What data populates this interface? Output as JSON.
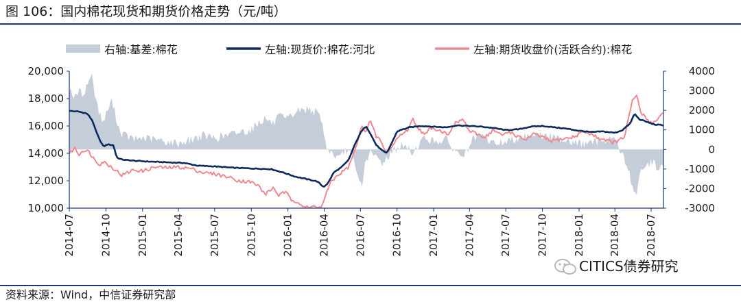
{
  "header": {
    "title": "图 106：国内棉花现货和期货价格走势（元/吨）"
  },
  "footer": {
    "source": "资料来源：Wind，中信证券研究部"
  },
  "watermark": {
    "text": "CITICS债券研究",
    "icon": "wechat-icon"
  },
  "colors": {
    "basis": "#c5cdd8",
    "spot": "#0d2a5c",
    "futures": "#ee8a8f",
    "axis": "#163a70"
  },
  "chart_data": {
    "type": "line",
    "legend": [
      "右轴:基差:棉花",
      "左轴:现货价:棉花:河北",
      "左轴:期货收盘价(活跃合约):棉花"
    ],
    "legend_position": "top",
    "grid": false,
    "x_ticks": [
      "2014-07",
      "2014-10",
      "2015-01",
      "2015-04",
      "2015-07",
      "2015-10",
      "2016-01",
      "2016-04",
      "2016-07",
      "2016-10",
      "2017-01",
      "2017-04",
      "2017-07",
      "2017-10",
      "2018-01",
      "2018-04",
      "2018-07"
    ],
    "x_range": [
      "2014-07",
      "2018-08"
    ],
    "y_left": {
      "ticks": [
        "10,000",
        "12,000",
        "14,000",
        "16,000",
        "18,000",
        "20,000"
      ],
      "range": [
        10000,
        20000
      ]
    },
    "y_right": {
      "ticks": [
        "-3000",
        "-2000",
        "-1000",
        "0",
        "1000",
        "2000",
        "3000",
        "4000"
      ],
      "range": [
        -3000,
        4000
      ]
    },
    "series": [
      {
        "name": "左轴:现货价:棉花:河北",
        "axis": "left",
        "kind": "line",
        "points": [
          [
            "2014-07-01",
            17100
          ],
          [
            "2014-07-25",
            17050
          ],
          [
            "2014-08-15",
            16900
          ],
          [
            "2014-08-28",
            16400
          ],
          [
            "2014-09-05",
            15700
          ],
          [
            "2014-09-15",
            15000
          ],
          [
            "2014-09-25",
            14500
          ],
          [
            "2014-10-05",
            14650
          ],
          [
            "2014-10-20",
            14600
          ],
          [
            "2014-10-28",
            13700
          ],
          [
            "2014-11-10",
            13550
          ],
          [
            "2014-12-15",
            13450
          ],
          [
            "2015-01-20",
            13400
          ],
          [
            "2015-03-01",
            13350
          ],
          [
            "2015-04-15",
            13300
          ],
          [
            "2015-05-20",
            13100
          ],
          [
            "2015-07-01",
            13050
          ],
          [
            "2015-08-15",
            12950
          ],
          [
            "2015-10-01",
            12900
          ],
          [
            "2015-11-20",
            12850
          ],
          [
            "2015-12-20",
            12600
          ],
          [
            "2016-01-20",
            12300
          ],
          [
            "2016-02-20",
            12100
          ],
          [
            "2016-03-15",
            11950
          ],
          [
            "2016-03-30",
            11550
          ],
          [
            "2016-04-10",
            11800
          ],
          [
            "2016-04-25",
            12600
          ],
          [
            "2016-05-15",
            13000
          ],
          [
            "2016-06-01",
            13500
          ],
          [
            "2016-06-15",
            14500
          ],
          [
            "2016-07-01",
            15500
          ],
          [
            "2016-07-15",
            16000
          ],
          [
            "2016-07-25",
            15500
          ],
          [
            "2016-08-10",
            14600
          ],
          [
            "2016-08-25",
            14200
          ],
          [
            "2016-09-05",
            14000
          ],
          [
            "2016-09-20",
            14900
          ],
          [
            "2016-10-01",
            15600
          ],
          [
            "2016-10-10",
            15700
          ],
          [
            "2016-11-01",
            15900
          ],
          [
            "2016-12-01",
            16000
          ],
          [
            "2017-01-01",
            15950
          ],
          [
            "2017-02-01",
            15900
          ],
          [
            "2017-03-01",
            16050
          ],
          [
            "2017-04-01",
            16000
          ],
          [
            "2017-05-01",
            15950
          ],
          [
            "2017-06-01",
            15850
          ],
          [
            "2017-07-01",
            15700
          ],
          [
            "2017-08-01",
            15750
          ],
          [
            "2017-09-01",
            15950
          ],
          [
            "2017-10-01",
            16000
          ],
          [
            "2017-11-01",
            15900
          ],
          [
            "2017-12-01",
            15800
          ],
          [
            "2018-01-01",
            15650
          ],
          [
            "2018-02-01",
            15550
          ],
          [
            "2018-03-01",
            15600
          ],
          [
            "2018-04-01",
            15500
          ],
          [
            "2018-04-20",
            15700
          ],
          [
            "2018-05-10",
            16200
          ],
          [
            "2018-05-20",
            16900
          ],
          [
            "2018-06-01",
            16500
          ],
          [
            "2018-06-20",
            16300
          ],
          [
            "2018-07-10",
            16100
          ],
          [
            "2018-08-01",
            16050
          ]
        ]
      },
      {
        "name": "左轴:期货收盘价(活跃合约):棉花",
        "axis": "left",
        "kind": "line",
        "points": [
          [
            "2014-07-01",
            14000
          ],
          [
            "2014-07-15",
            14400
          ],
          [
            "2014-07-25",
            13900
          ],
          [
            "2014-08-05",
            14250
          ],
          [
            "2014-08-20",
            14100
          ],
          [
            "2014-09-01",
            13600
          ],
          [
            "2014-09-15",
            13200
          ],
          [
            "2014-09-25",
            13400
          ],
          [
            "2014-10-10",
            13100
          ],
          [
            "2014-10-25",
            12800
          ],
          [
            "2014-11-10",
            12400
          ],
          [
            "2014-11-25",
            12600
          ],
          [
            "2014-12-10",
            12800
          ],
          [
            "2015-01-01",
            12700
          ],
          [
            "2015-02-01",
            13000
          ],
          [
            "2015-03-01",
            12950
          ],
          [
            "2015-04-01",
            13000
          ],
          [
            "2015-05-01",
            12900
          ],
          [
            "2015-06-01",
            12600
          ],
          [
            "2015-07-01",
            12500
          ],
          [
            "2015-08-01",
            12300
          ],
          [
            "2015-09-01",
            12000
          ],
          [
            "2015-10-01",
            11900
          ],
          [
            "2015-10-20",
            11600
          ],
          [
            "2015-11-05",
            11000
          ],
          [
            "2015-11-25",
            11500
          ],
          [
            "2015-12-10",
            10900
          ],
          [
            "2015-12-25",
            11200
          ],
          [
            "2016-01-10",
            10600
          ],
          [
            "2016-01-25",
            10500
          ],
          [
            "2016-02-10",
            10100
          ],
          [
            "2016-02-25",
            10000
          ],
          [
            "2016-03-10",
            10200
          ],
          [
            "2016-03-25",
            10000
          ],
          [
            "2016-04-05",
            11000
          ],
          [
            "2016-04-20",
            12000
          ],
          [
            "2016-05-10",
            12500
          ],
          [
            "2016-06-01",
            13000
          ],
          [
            "2016-06-15",
            14000
          ],
          [
            "2016-06-25",
            15000
          ],
          [
            "2016-07-05",
            16000
          ],
          [
            "2016-07-15",
            15600
          ],
          [
            "2016-07-25",
            16400
          ],
          [
            "2016-08-10",
            15200
          ],
          [
            "2016-08-20",
            15000
          ],
          [
            "2016-09-01",
            14100
          ],
          [
            "2016-09-15",
            14300
          ],
          [
            "2016-10-01",
            15100
          ],
          [
            "2016-10-15",
            15500
          ],
          [
            "2016-10-25",
            15600
          ],
          [
            "2016-11-10",
            16500
          ],
          [
            "2016-11-25",
            15800
          ],
          [
            "2016-12-10",
            15300
          ],
          [
            "2016-12-25",
            15900
          ],
          [
            "2017-01-15",
            15700
          ],
          [
            "2017-02-05",
            15400
          ],
          [
            "2017-02-25",
            16200
          ],
          [
            "2017-03-15",
            16500
          ],
          [
            "2017-04-01",
            15600
          ],
          [
            "2017-04-20",
            15400
          ],
          [
            "2017-05-10",
            15200
          ],
          [
            "2017-06-01",
            15700
          ],
          [
            "2017-06-20",
            15300
          ],
          [
            "2017-07-10",
            15600
          ],
          [
            "2017-08-01",
            15200
          ],
          [
            "2017-08-20",
            15000
          ],
          [
            "2017-09-10",
            15400
          ],
          [
            "2017-10-01",
            15200
          ],
          [
            "2017-10-20",
            14900
          ],
          [
            "2017-11-10",
            15000
          ],
          [
            "2017-12-01",
            15100
          ],
          [
            "2017-12-20",
            15200
          ],
          [
            "2018-01-10",
            15600
          ],
          [
            "2018-02-01",
            15400
          ],
          [
            "2018-02-20",
            15100
          ],
          [
            "2018-03-10",
            15000
          ],
          [
            "2018-03-25",
            14800
          ],
          [
            "2018-04-10",
            14900
          ],
          [
            "2018-04-25",
            15200
          ],
          [
            "2018-05-05",
            16500
          ],
          [
            "2018-05-15",
            17800
          ],
          [
            "2018-05-25",
            18300
          ],
          [
            "2018-06-05",
            17000
          ],
          [
            "2018-06-20",
            16500
          ],
          [
            "2018-07-05",
            16200
          ],
          [
            "2018-07-20",
            16600
          ],
          [
            "2018-08-01",
            17000
          ]
        ]
      },
      {
        "name": "右轴:基差:棉花",
        "axis": "right",
        "kind": "area",
        "points": [
          [
            "2014-07-01",
            3200
          ],
          [
            "2014-07-15",
            2600
          ],
          [
            "2014-07-25",
            3000
          ],
          [
            "2014-08-05",
            2800
          ],
          [
            "2014-08-15",
            3300
          ],
          [
            "2014-08-25",
            3900
          ],
          [
            "2014-09-05",
            2700
          ],
          [
            "2014-09-15",
            1800
          ],
          [
            "2014-09-25",
            1400
          ],
          [
            "2014-10-05",
            2000
          ],
          [
            "2014-10-15",
            2500
          ],
          [
            "2014-10-25",
            1800
          ],
          [
            "2014-11-05",
            900
          ],
          [
            "2014-11-20",
            700
          ],
          [
            "2014-12-10",
            500
          ],
          [
            "2015-01-01",
            600
          ],
          [
            "2015-02-01",
            500
          ],
          [
            "2015-03-01",
            400
          ],
          [
            "2015-04-01",
            300
          ],
          [
            "2015-05-01",
            500
          ],
          [
            "2015-06-01",
            700
          ],
          [
            "2015-07-01",
            600
          ],
          [
            "2015-08-01",
            700
          ],
          [
            "2015-09-01",
            900
          ],
          [
            "2015-10-01",
            1000
          ],
          [
            "2015-10-20",
            1400
          ],
          [
            "2015-11-05",
            1600
          ],
          [
            "2015-11-25",
            1300
          ],
          [
            "2015-12-10",
            1700
          ],
          [
            "2015-12-25",
            1500
          ],
          [
            "2016-01-10",
            1700
          ],
          [
            "2016-01-25",
            2000
          ],
          [
            "2016-02-10",
            2000
          ],
          [
            "2016-02-25",
            2100
          ],
          [
            "2016-03-10",
            1900
          ],
          [
            "2016-03-25",
            1600
          ],
          [
            "2016-04-05",
            200
          ],
          [
            "2016-04-20",
            -200
          ],
          [
            "2016-05-10",
            -500
          ],
          [
            "2016-05-25",
            0
          ],
          [
            "2016-06-10",
            -300
          ],
          [
            "2016-06-25",
            -1500
          ],
          [
            "2016-07-05",
            -1800
          ],
          [
            "2016-07-15",
            -500
          ],
          [
            "2016-07-25",
            -200
          ],
          [
            "2016-08-10",
            -400
          ],
          [
            "2016-08-25",
            -700
          ],
          [
            "2016-09-10",
            -300
          ],
          [
            "2016-09-25",
            0
          ],
          [
            "2016-10-10",
            200
          ],
          [
            "2016-10-25",
            100
          ],
          [
            "2016-11-10",
            -200
          ],
          [
            "2016-11-25",
            300
          ],
          [
            "2016-12-10",
            600
          ],
          [
            "2017-01-01",
            400
          ],
          [
            "2017-02-01",
            500
          ],
          [
            "2017-03-01",
            -200
          ],
          [
            "2017-03-20",
            -300
          ],
          [
            "2017-04-10",
            500
          ],
          [
            "2017-05-01",
            700
          ],
          [
            "2017-06-01",
            300
          ],
          [
            "2017-07-01",
            400
          ],
          [
            "2017-08-01",
            600
          ],
          [
            "2017-09-01",
            800
          ],
          [
            "2017-10-01",
            700
          ],
          [
            "2017-11-01",
            600
          ],
          [
            "2017-12-01",
            500
          ],
          [
            "2018-01-01",
            300
          ],
          [
            "2018-02-01",
            300
          ],
          [
            "2018-03-01",
            500
          ],
          [
            "2018-04-01",
            600
          ],
          [
            "2018-04-20",
            -300
          ],
          [
            "2018-05-05",
            -1000
          ],
          [
            "2018-05-15",
            -2000
          ],
          [
            "2018-05-25",
            -2200
          ],
          [
            "2018-06-05",
            -1200
          ],
          [
            "2018-06-20",
            -800
          ],
          [
            "2018-07-05",
            -600
          ],
          [
            "2018-07-20",
            -1000
          ],
          [
            "2018-08-01",
            -800
          ]
        ]
      }
    ]
  }
}
